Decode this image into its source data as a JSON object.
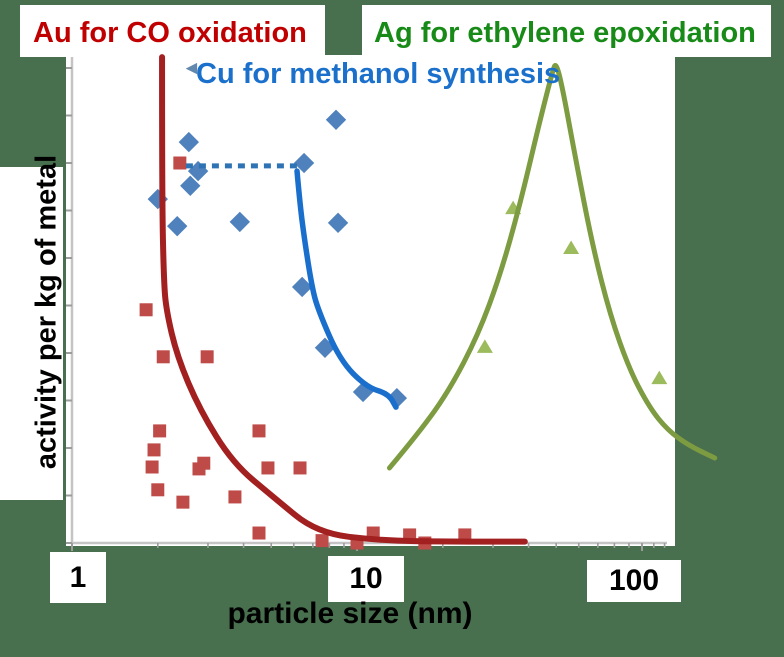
{
  "canvas": {
    "background_color": "#48704F"
  },
  "titles": {
    "au": {
      "label": "Au for CO oxidation",
      "color": "#C00000"
    },
    "ag": {
      "label": "Ag for ethylene epoxidation",
      "color": "#188A18"
    },
    "cu": {
      "label": "Cu for methanol synthesis",
      "color": "#1B70CB"
    }
  },
  "icons": {
    "cu_arrow": "◄"
  },
  "axes": {
    "x": {
      "label": "particle size (nm)",
      "scale": "log",
      "tick_labels": [
        "1",
        "10",
        "100"
      ],
      "major_ticks": [
        1,
        10,
        100
      ],
      "minor_ticks": [
        2,
        3,
        4,
        5,
        6,
        7,
        8,
        9,
        20,
        30,
        40,
        50,
        60,
        70,
        80,
        90,
        110,
        120
      ],
      "range_nm": [
        1,
        122
      ],
      "color": "#C4C4C4",
      "tick_color": "#9C9C9C"
    },
    "y": {
      "label": "activity per kg of metal",
      "scale": "linear",
      "range": [
        0,
        10.2
      ],
      "tick_count": 11,
      "tick_labels_shown": false
    }
  },
  "chart_data": {
    "type": "scatter",
    "x_unit": "nm",
    "y_unit": "activity (arbitrary, unlabeled axis)",
    "series": [
      {
        "name": "Au for CO oxidation",
        "marker": "square",
        "color": "#BE4B48",
        "points": [
          [
            2.39,
            8.0
          ],
          [
            1.82,
            4.91
          ],
          [
            2.09,
            3.92
          ],
          [
            2.98,
            3.92
          ],
          [
            2.03,
            2.36
          ],
          [
            4.53,
            2.36
          ],
          [
            1.94,
            1.96
          ],
          [
            1.91,
            1.6
          ],
          [
            2.9,
            1.68
          ],
          [
            2.79,
            1.56
          ],
          [
            2.0,
            1.12
          ],
          [
            2.45,
            0.86
          ],
          [
            3.73,
            0.97
          ],
          [
            4.87,
            1.58
          ],
          [
            6.31,
            1.58
          ],
          [
            4.53,
            0.21
          ],
          [
            7.54,
            0.05
          ],
          [
            10.0,
            0.0
          ],
          [
            11.4,
            0.21
          ],
          [
            15.3,
            0.17
          ],
          [
            17.3,
            0.0
          ],
          [
            23.9,
            0.17
          ]
        ]
      },
      {
        "name": "Cu for methanol synthesis",
        "marker": "diamond",
        "color": "#4F81BD",
        "points": [
          [
            2.57,
            8.44
          ],
          [
            8.44,
            8.91
          ],
          [
            2.77,
            7.83
          ],
          [
            2.6,
            7.52
          ],
          [
            2.0,
            7.24
          ],
          [
            2.34,
            6.67
          ],
          [
            3.88,
            6.76
          ],
          [
            6.52,
            8.0
          ],
          [
            8.58,
            6.74
          ],
          [
            6.42,
            5.39
          ],
          [
            7.72,
            4.11
          ],
          [
            10.5,
            3.18
          ],
          [
            13.8,
            3.05
          ]
        ]
      },
      {
        "name": "Ag for ethylene epoxidation",
        "marker": "triangle",
        "color": "#9CBB5D",
        "points": [
          [
            28.1,
            4.13
          ],
          [
            35.3,
            7.05
          ],
          [
            56.4,
            6.21
          ],
          [
            115,
            3.47
          ]
        ]
      }
    ],
    "fit_curves": [
      {
        "series": "Au for CO oxidation",
        "color": "#A32020",
        "width": 6,
        "points": [
          [
            2.07,
            10.23
          ],
          [
            2.07,
            7.22
          ],
          [
            2.1,
            5.54
          ],
          [
            2.14,
            4.91
          ],
          [
            2.34,
            3.92
          ],
          [
            2.81,
            2.8
          ],
          [
            3.67,
            1.68
          ],
          [
            5.08,
            0.97
          ],
          [
            7.24,
            0.21
          ],
          [
            12.1,
            0.05
          ],
          [
            21.2,
            0.03
          ],
          [
            38.8,
            0.03
          ]
        ]
      },
      {
        "series": "Cu for methanol synthesis",
        "color": "#1A6FCC",
        "width": 5.5,
        "points": [
          [
            6.16,
            7.83
          ],
          [
            6.31,
            7.12
          ],
          [
            6.56,
            6.34
          ],
          [
            6.95,
            5.39
          ],
          [
            7.3,
            4.91
          ],
          [
            8.71,
            3.85
          ],
          [
            10.8,
            3.28
          ],
          [
            12.9,
            3.14
          ],
          [
            13.7,
            2.86
          ]
        ]
      },
      {
        "series": "Ag for ethylene epoxidation",
        "color": "#7D9B40",
        "width": 5,
        "points": [
          [
            13.0,
            1.58
          ],
          [
            16.6,
            2.34
          ],
          [
            21.1,
            3.22
          ],
          [
            26.6,
            4.38
          ],
          [
            31.8,
            5.64
          ],
          [
            37.3,
            7.12
          ],
          [
            43.9,
            8.91
          ],
          [
            48.7,
            9.96
          ],
          [
            49.9,
            10.11
          ],
          [
            52.4,
            9.64
          ],
          [
            58.6,
            8.06
          ],
          [
            67.0,
            6.27
          ],
          [
            77.3,
            4.8
          ],
          [
            90.5,
            3.64
          ],
          [
            106.5,
            2.84
          ],
          [
            123,
            2.38
          ],
          [
            145,
            2.06
          ],
          [
            180,
            1.79
          ]
        ]
      }
    ],
    "annotation": {
      "type": "dotted-line",
      "color": "#2E74B5",
      "width": 5,
      "from_nm": 2.51,
      "to_nm": 6.16,
      "activity": 7.94
    }
  }
}
